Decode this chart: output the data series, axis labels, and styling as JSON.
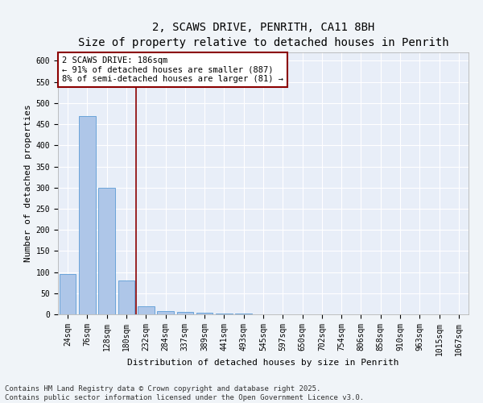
{
  "title": "2, SCAWS DRIVE, PENRITH, CA11 8BH",
  "subtitle": "Size of property relative to detached houses in Penrith",
  "xlabel": "Distribution of detached houses by size in Penrith",
  "ylabel": "Number of detached properties",
  "categories": [
    "24sqm",
    "76sqm",
    "128sqm",
    "180sqm",
    "232sqm",
    "284sqm",
    "337sqm",
    "389sqm",
    "441sqm",
    "493sqm",
    "545sqm",
    "597sqm",
    "650sqm",
    "702sqm",
    "754sqm",
    "806sqm",
    "858sqm",
    "910sqm",
    "963sqm",
    "1015sqm",
    "1067sqm"
  ],
  "values": [
    95,
    470,
    300,
    80,
    20,
    8,
    5,
    4,
    1,
    1,
    0,
    0,
    0,
    0,
    0,
    0,
    0,
    0,
    0,
    0,
    0
  ],
  "bar_color": "#aec6e8",
  "bar_edge_color": "#5b9bd5",
  "vline_x": 3.5,
  "vline_color": "#8b0000",
  "annotation_text": "2 SCAWS DRIVE: 186sqm\n← 91% of detached houses are smaller (887)\n8% of semi-detached houses are larger (81) →",
  "annotation_box_color": "#ffffff",
  "annotation_box_edge": "#8b0000",
  "ylim": [
    0,
    620
  ],
  "yticks": [
    0,
    50,
    100,
    150,
    200,
    250,
    300,
    350,
    400,
    450,
    500,
    550,
    600
  ],
  "background_color": "#e8eef8",
  "grid_color": "#ffffff",
  "footer_text": "Contains HM Land Registry data © Crown copyright and database right 2025.\nContains public sector information licensed under the Open Government Licence v3.0.",
  "title_fontsize": 10,
  "axis_label_fontsize": 8,
  "tick_fontsize": 7,
  "annotation_fontsize": 7.5,
  "footer_fontsize": 6.5
}
